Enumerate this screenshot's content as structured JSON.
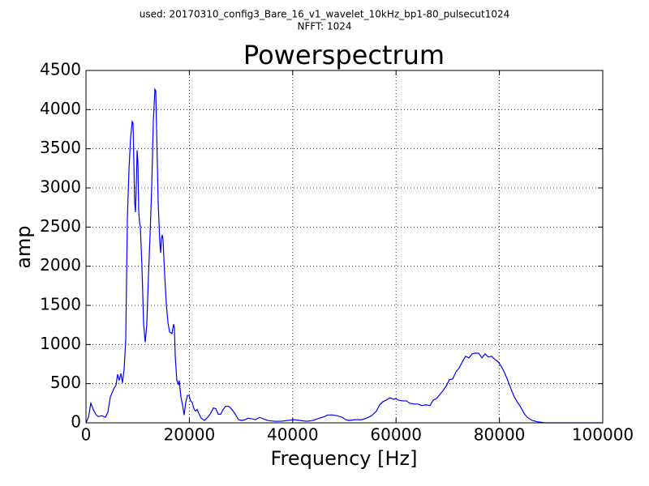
{
  "chart_data": {
    "type": "line",
    "suptitle": [
      "used: 20170310_config3_Bare_16_v1_wavelet_10kHz_bp1-80_pulsecut1024",
      "NFFT: 1024"
    ],
    "title": "Powerspectrum",
    "xlabel": "Frequency [Hz]",
    "ylabel": "amp",
    "xlim": [
      0,
      100000
    ],
    "ylim": [
      0,
      4500
    ],
    "xticks": [
      0,
      20000,
      40000,
      60000,
      80000,
      100000
    ],
    "yticks": [
      0,
      500,
      1000,
      1500,
      2000,
      2500,
      3000,
      3500,
      4000,
      4500
    ],
    "grid": true,
    "x": [
      0,
      470,
      940,
      1410,
      1880,
      2350,
      3140,
      3770,
      4240,
      4710,
      5340,
      5810,
      6120,
      6440,
      6750,
      7060,
      7380,
      7690,
      8010,
      8320,
      8630,
      8950,
      9100,
      9260,
      9420,
      9580,
      9730,
      9890,
      10050,
      10200,
      10360,
      10520,
      10830,
      11150,
      11460,
      11770,
      12090,
      12400,
      12720,
      13030,
      13340,
      13500,
      13660,
      13970,
      14290,
      14440,
      14600,
      14760,
      14910,
      15230,
      15540,
      15860,
      16170,
      16640,
      16950,
      17110,
      17270,
      17580,
      17900,
      18050,
      18370,
      18680,
      18990,
      19310,
      19620,
      19940,
      20250,
      20560,
      20880,
      21190,
      21510,
      21820,
      22290,
      22920,
      23390,
      24020,
      24650,
      25120,
      25590,
      26060,
      26530,
      27000,
      27630,
      28260,
      28890,
      29510,
      30140,
      30770,
      31400,
      32180,
      32810,
      33590,
      34380,
      35160,
      36420,
      37680,
      38930,
      40190,
      41440,
      42700,
      43960,
      45210,
      46150,
      46780,
      47720,
      48670,
      49610,
      50240,
      50860,
      52120,
      53380,
      54320,
      55260,
      56200,
      56830,
      57460,
      58080,
      58870,
      59500,
      59970,
      60440,
      61220,
      62010,
      62640,
      63420,
      64210,
      64990,
      65780,
      66560,
      67190,
      67820,
      68450,
      69070,
      69700,
      70330,
      70960,
      71590,
      72210,
      72840,
      73470,
      74100,
      74730,
      75350,
      75980,
      76610,
      77240,
      77860,
      78490,
      79120,
      79750,
      80380,
      81000,
      81630,
      82260,
      82890,
      83520,
      84140,
      84770,
      85400,
      86340,
      87600,
      88860,
      91680,
      100000
    ],
    "series": [
      {
        "color": "#0000ff",
        "values": [
          0,
          70,
          250,
          170,
          110,
          80,
          90,
          70,
          140,
          330,
          430,
          480,
          620,
          540,
          630,
          510,
          690,
          1060,
          2610,
          3230,
          3640,
          3850,
          3830,
          3330,
          2810,
          2690,
          3020,
          3480,
          3330,
          2710,
          2560,
          2500,
          1990,
          1260,
          1030,
          1260,
          1880,
          2400,
          3020,
          3850,
          4260,
          4240,
          3750,
          2810,
          2300,
          2170,
          2350,
          2400,
          2340,
          1880,
          1520,
          1280,
          1160,
          1140,
          1260,
          1210,
          850,
          540,
          490,
          540,
          330,
          230,
          100,
          260,
          350,
          350,
          280,
          260,
          180,
          150,
          170,
          120,
          60,
          30,
          60,
          110,
          190,
          180,
          110,
          110,
          170,
          210,
          210,
          170,
          110,
          40,
          30,
          40,
          60,
          50,
          40,
          70,
          50,
          30,
          20,
          20,
          30,
          40,
          30,
          20,
          30,
          60,
          80,
          100,
          100,
          90,
          70,
          40,
          30,
          40,
          40,
          60,
          90,
          150,
          230,
          270,
          290,
          320,
          300,
          310,
          290,
          280,
          280,
          250,
          240,
          240,
          220,
          230,
          220,
          290,
          310,
          360,
          410,
          470,
          550,
          560,
          650,
          700,
          780,
          850,
          830,
          880,
          890,
          890,
          830,
          880,
          840,
          850,
          810,
          780,
          720,
          640,
          540,
          430,
          330,
          260,
          200,
          120,
          70,
          30,
          10,
          0,
          0,
          0
        ]
      }
    ]
  }
}
